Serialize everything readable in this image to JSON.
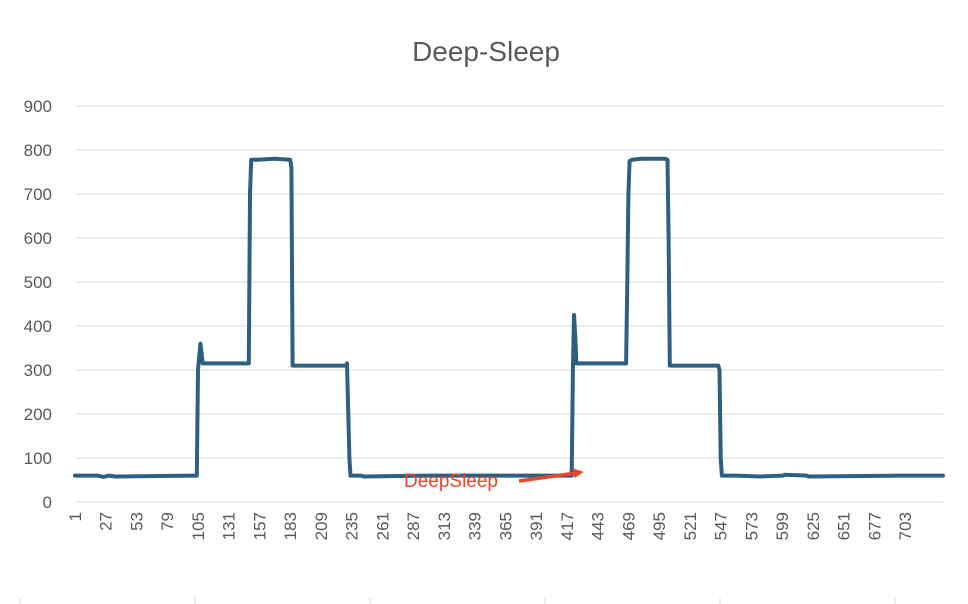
{
  "chart_data": {
    "type": "line",
    "title": "Deep-Sleep",
    "xlabel": "",
    "ylabel": "",
    "ylim": [
      0,
      900
    ],
    "yticks": [
      0,
      100,
      200,
      300,
      400,
      500,
      600,
      700,
      800,
      900
    ],
    "xlim": [
      1,
      735
    ],
    "xticks": [
      1,
      27,
      53,
      79,
      105,
      131,
      157,
      183,
      209,
      235,
      261,
      287,
      313,
      339,
      365,
      391,
      417,
      443,
      469,
      495,
      521,
      547,
      573,
      599,
      625,
      651,
      677,
      703
    ],
    "grid": true,
    "legend": "none",
    "series_color": "#2e5f80",
    "annotation_color": "#e8472b",
    "series": [
      {
        "x": [
          1,
          20,
          25,
          30,
          35,
          100,
          104,
          105,
          106,
          107,
          108,
          109,
          115,
          130,
          148,
          149,
          150,
          155,
          170,
          183,
          184,
          185,
          190,
          230,
          231,
          233,
          234,
          243,
          245,
          300,
          400,
          421,
          422,
          423,
          424,
          425,
          426,
          440,
          467,
          468,
          469,
          470,
          472,
          480,
          500,
          502,
          503,
          504,
          510,
          545,
          546,
          547,
          548,
          549,
          560,
          580,
          600,
          601,
          620,
          621,
          700,
          735
        ],
        "y": [
          60,
          60,
          57,
          60,
          58,
          60,
          60,
          300,
          330,
          360,
          340,
          315,
          315,
          315,
          315,
          700,
          778,
          778,
          780,
          778,
          760,
          310,
          310,
          310,
          315,
          100,
          60,
          60,
          58,
          60,
          60,
          60,
          300,
          425,
          380,
          315,
          315,
          315,
          315,
          500,
          700,
          775,
          778,
          780,
          780,
          778,
          600,
          310,
          310,
          310,
          300,
          100,
          60,
          60,
          60,
          58,
          60,
          62,
          60,
          58,
          60,
          60
        ]
      }
    ],
    "annotations": [
      {
        "text": "DeepSleep",
        "x": 410,
        "y": 60
      }
    ]
  }
}
